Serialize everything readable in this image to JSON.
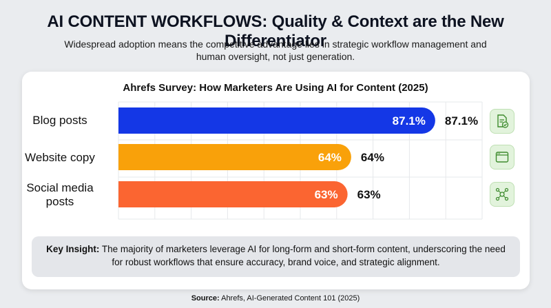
{
  "header": {
    "title": "AI CONTENT WORKFLOWS: Quality & Context are the New Differentiator",
    "subtitle": "Widespread adoption means the competitive advantage lies in strategic workflow management and human oversight, not just generation."
  },
  "chart_data": {
    "type": "bar",
    "orientation": "horizontal",
    "title": "Ahrefs Survey: How Marketers Are Using AI for Content (2025)",
    "categories": [
      "Blog posts",
      "Website copy",
      "Social media posts"
    ],
    "values": [
      87.1,
      64,
      63
    ],
    "value_labels": [
      "87.1%",
      "64%",
      "63%"
    ],
    "colors": [
      "#1437e6",
      "#f9a10a",
      "#fb6531"
    ],
    "xlim": [
      0,
      100
    ],
    "grid": true,
    "icons": [
      "document-check-icon",
      "browser-window-icon",
      "network-nodes-icon"
    ]
  },
  "insight": {
    "label": "Key Insight:",
    "text": " The majority of marketers leverage AI for long-form and short-form content, underscoring the need for robust workflows that ensure accuracy, brand voice, and strategic alignment."
  },
  "source": {
    "label": "Source:",
    "text": " Ahrefs, AI-Generated Content 101 (2025)"
  }
}
